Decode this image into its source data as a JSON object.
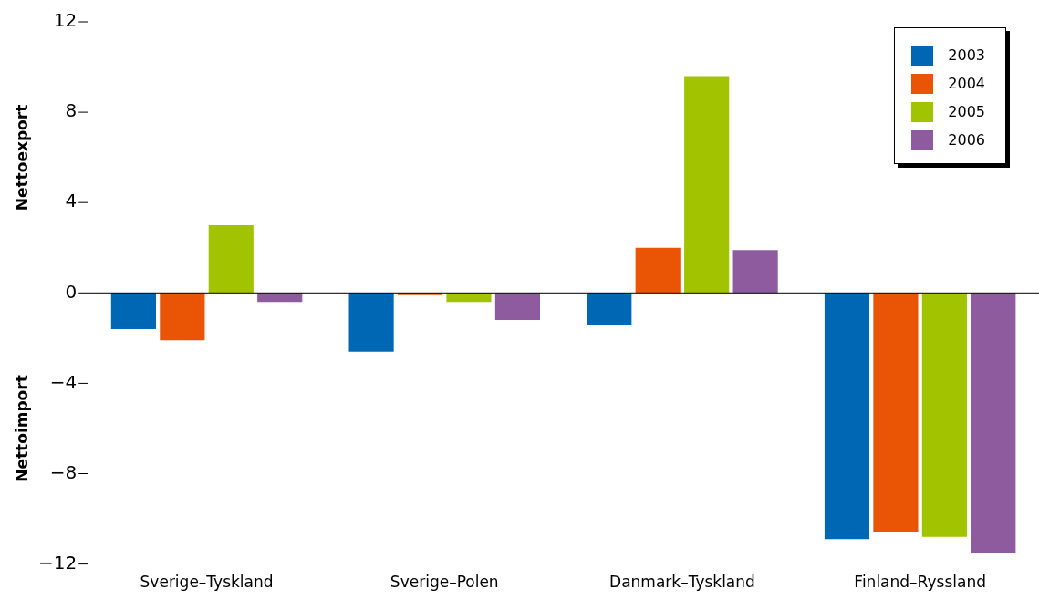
{
  "chart_data": {
    "type": "bar",
    "ylabel": "Nettoexport",
    "annotations": [
      "Nettoimport"
    ],
    "categories": [
      "Sverige–Tyskland",
      "Sverige–Polen",
      "Danmark–Tyskland",
      "Finland–Ryssland"
    ],
    "series": [
      {
        "name": "2003",
        "color": "#0067b4",
        "values": [
          -1.6,
          -2.6,
          -1.4,
          -10.9
        ]
      },
      {
        "name": "2004",
        "color": "#e95504",
        "values": [
          -2.1,
          -0.1,
          2.0,
          -10.6
        ]
      },
      {
        "name": "2005",
        "color": "#a2c400",
        "values": [
          3.0,
          -0.4,
          9.6,
          -10.8
        ]
      },
      {
        "name": "2006",
        "color": "#8e5c9e",
        "values": [
          -0.4,
          -1.2,
          1.9,
          -11.5
        ]
      }
    ],
    "ylim": [
      -12,
      12
    ],
    "yticks": [
      {
        "value": -12,
        "label": "−12"
      },
      {
        "value": -8,
        "label": "−8"
      },
      {
        "value": -4,
        "label": "−4"
      },
      0,
      4,
      8,
      12
    ],
    "ref_lines": [
      {
        "axis": "y",
        "value": 0,
        "color": "#000000"
      }
    ],
    "grid": false,
    "legend": "top right"
  }
}
